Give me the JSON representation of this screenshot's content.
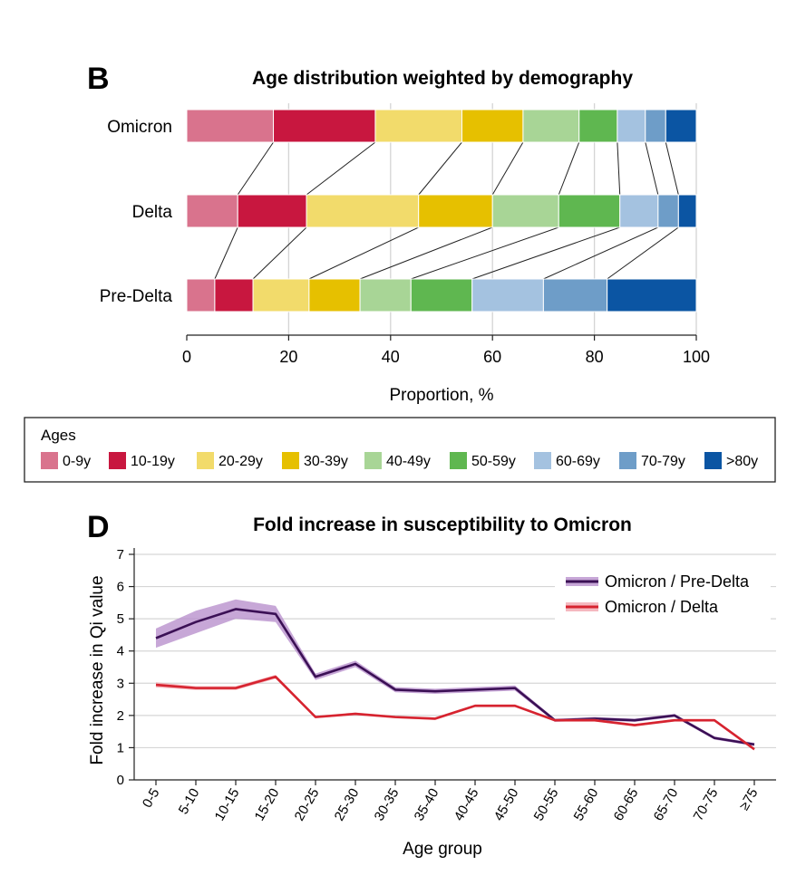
{
  "chart_data": [
    {
      "panel": "B",
      "type": "bar",
      "stacked": true,
      "orientation": "horizontal",
      "title": "Age distribution weighted by demography",
      "xlabel": "Proportion, %",
      "ylabel": "",
      "xlim": [
        0,
        100
      ],
      "xticks": [
        "0",
        "20",
        "40",
        "60",
        "80",
        "100"
      ],
      "categories": [
        "Omicron",
        "Delta",
        "Pre-Delta"
      ],
      "series": [
        {
          "name": "0-9y",
          "color": "#d9738d",
          "values": [
            17,
            10,
            5.5
          ]
        },
        {
          "name": "10-19y",
          "color": "#c8173f",
          "values": [
            20,
            13.5,
            7.5
          ]
        },
        {
          "name": "20-29y",
          "color": "#f2db6b",
          "values": [
            17,
            22,
            11
          ]
        },
        {
          "name": "30-39y",
          "color": "#e6c000",
          "values": [
            12,
            14.5,
            10
          ]
        },
        {
          "name": "40-49y",
          "color": "#a8d596",
          "values": [
            11,
            13,
            10
          ]
        },
        {
          "name": "50-59y",
          "color": "#5fb750",
          "values": [
            7.5,
            12,
            12
          ]
        },
        {
          "name": "60-69y",
          "color": "#a4c2e0",
          "values": [
            5.5,
            7.5,
            14
          ]
        },
        {
          "name": "70-79y",
          "color": "#6e9dc8",
          "values": [
            4,
            4,
            12.5
          ]
        },
        {
          "name": ">80y",
          "color": "#0b55a3",
          "values": [
            6,
            3.5,
            17.5
          ]
        }
      ],
      "legend": {
        "title": "Ages",
        "placement": "bottom"
      },
      "grid": true
    },
    {
      "panel": "D",
      "type": "line",
      "title": "Fold increase in susceptibility to Omicron",
      "xlabel": "Age group",
      "ylabel": "Fold increase in Qi value",
      "ylim": [
        0,
        7
      ],
      "yticks": [
        "0",
        "1",
        "2",
        "3",
        "4",
        "5",
        "6",
        "7"
      ],
      "categories": [
        "0-5",
        "5-10",
        "10-15",
        "15-20",
        "20-25",
        "25-30",
        "30-35",
        "35-40",
        "40-45",
        "45-50",
        "50-55",
        "55-60",
        "60-65",
        "65-70",
        "70-75",
        "≥75"
      ],
      "series": [
        {
          "name": "Omicron / Pre-Delta",
          "color": "#3b1055",
          "band_color": "#b48ac9",
          "values": [
            4.4,
            4.9,
            5.3,
            5.15,
            3.2,
            3.6,
            2.8,
            2.75,
            2.8,
            2.85,
            1.85,
            1.9,
            1.85,
            2.0,
            1.3,
            1.1
          ],
          "band": [
            0.3,
            0.35,
            0.3,
            0.25,
            0.1,
            0.1,
            0.08,
            0.08,
            0.08,
            0.08,
            0.05,
            0.05,
            0.05,
            0.05,
            0.05,
            0.05
          ]
        },
        {
          "name": "Omicron / Delta",
          "color": "#d6232f",
          "band_color": "#f2a0aa",
          "values": [
            2.95,
            2.85,
            2.85,
            3.2,
            1.95,
            2.05,
            1.95,
            1.9,
            2.3,
            2.3,
            1.85,
            1.85,
            1.7,
            1.85,
            1.85,
            0.95
          ],
          "band": [
            0.08,
            0.06,
            0.06,
            0.06,
            0.04,
            0.04,
            0.04,
            0.04,
            0.04,
            0.04,
            0.04,
            0.04,
            0.04,
            0.04,
            0.04,
            0.04
          ]
        }
      ],
      "legend_placement": "top-right",
      "grid": true
    }
  ]
}
